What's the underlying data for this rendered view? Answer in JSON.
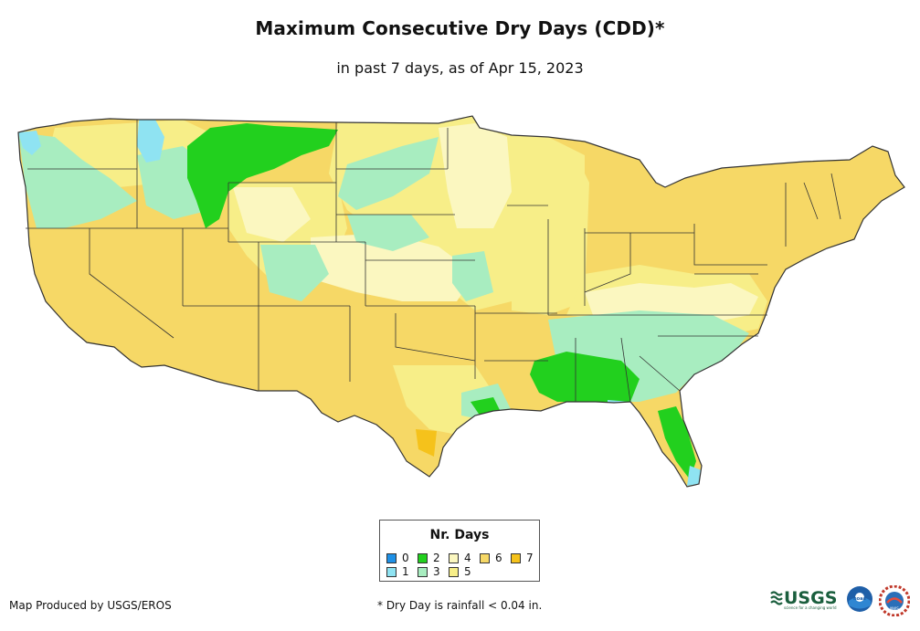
{
  "title": "Maximum Consecutive Dry Days (CDD)*",
  "subtitle": "in past 7 days, as of Apr 15, 2023",
  "legend": {
    "title": "Nr. Days",
    "items": [
      {
        "label": "0",
        "color": "#1e90e6"
      },
      {
        "label": "1",
        "color": "#8fe3f2"
      },
      {
        "label": "2",
        "color": "#22d01e"
      },
      {
        "label": "3",
        "color": "#a8edc0"
      },
      {
        "label": "4",
        "color": "#fbf7c0"
      },
      {
        "label": "5",
        "color": "#f7ee88"
      },
      {
        "label": "6",
        "color": "#f6d866"
      },
      {
        "label": "7",
        "color": "#f5c21b"
      }
    ]
  },
  "credit": "Map Produced by USGS/EROS",
  "footnote": "* Dry Day is rainfall < 0.04 in.",
  "logos": {
    "usgs": "USGS",
    "usgs_tagline": "science for a changing world",
    "noaa": "noaa",
    "nws": "NWS"
  },
  "map_colors": {
    "ocean": "#ffffff",
    "state_border": "#333333"
  }
}
